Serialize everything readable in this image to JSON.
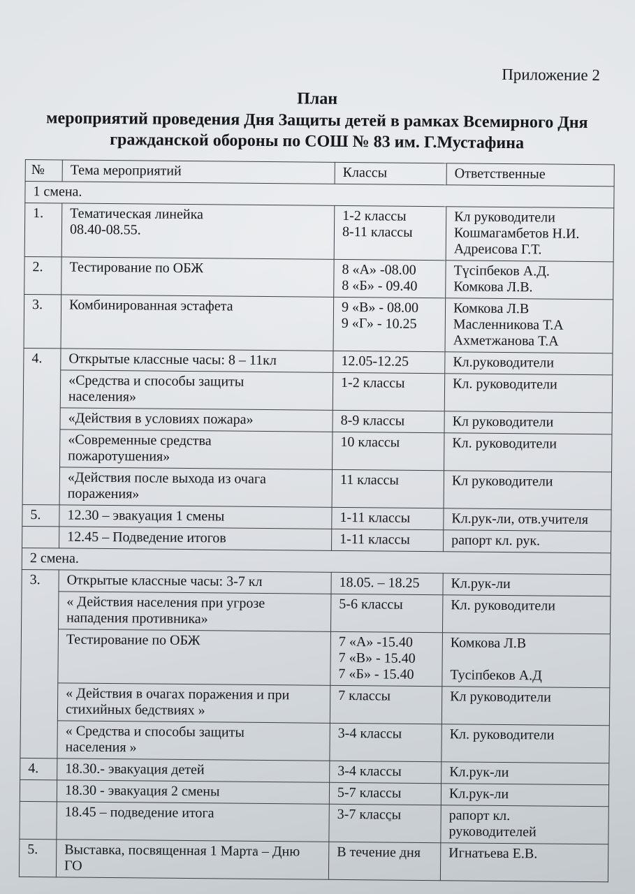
{
  "header": {
    "annex": "Приложение 2",
    "title_line1": "План",
    "title_line2": "мероприятий проведения Дня Защиты детей в рамках Всемирного Дня",
    "title_line3": "гражданской обороны по СОШ № 83 им. Г.Мустафина"
  },
  "table": {
    "columns": [
      "№",
      "Тема мероприятий",
      "Классы",
      "Ответственные"
    ],
    "rows": [
      {
        "section": "1 смена."
      },
      {
        "num": "1.",
        "topic": "Тематическая линейка\n08.40-08.55.",
        "classes": "1-2 классы\n8-11 классы",
        "resp": "Кл руководители\nКошмагамбетов Н.И.\nАдреисова Г.Т."
      },
      {
        "num": "2.",
        "topic": "Тестирование по ОБЖ",
        "classes": "8 «А» -08.00\n8 «Б» - 09.40",
        "resp": "Түсіпбеков А.Д.\nКомкова Л.В."
      },
      {
        "num": "3.",
        "topic": "Комбинированная эстафета",
        "classes": "9 «В» - 08.00\n9 «Г» - 10.25",
        "resp": "Комкова Л.В\nМасленникова Т.А\nАхметжанова Т.А"
      },
      {
        "num": "4.",
        "span": 5,
        "topic": "Открытые классные часы: 8 – 11кл",
        "classes": "12.05-12.25",
        "resp": "Кл.руководители"
      },
      {
        "topic": "«Средства и способы защиты\nнаселения»",
        "classes": "1-2 классы",
        "resp": "Кл. руководители"
      },
      {
        "topic": "«Действия в условиях пожара»",
        "classes": "8-9 классы",
        "resp": "Кл руководители"
      },
      {
        "topic": "«Современные средства\nпожаротушения»",
        "classes": "10 классы",
        "resp": "Кл. руководители"
      },
      {
        "topic": "«Действия после выхода  из очага\nпоражения»",
        "classes": "11 классы",
        "resp": "Кл руководители"
      },
      {
        "num": "5.",
        "topic": "12.30 – эвакуация 1 смены",
        "classes": "1-11 классы",
        "resp": "Кл.рук-ли, отв.учителя"
      },
      {
        "num": "",
        "topic": "12.45 –  Подведение итогов",
        "classes": "1-11 классы",
        "resp": "рапорт кл. рук."
      },
      {
        "section": "2 смена."
      },
      {
        "num": "3.",
        "span": 5,
        "topic": "Открытые классные часы: 3-7 кл",
        "classes": "18.05. – 18.25",
        "resp": "Кл.рук-ли"
      },
      {
        "topic": "« Действия населения при угрозе\nнападения противника»",
        "classes": "5-6 классы",
        "resp": "Кл. руководители"
      },
      {
        "topic": "Тестирование по ОБЖ",
        "classes": "7 «А» -15.40\n7 «В» - 15.40\n7 «Б» - 15.40",
        "resp": "Комкова Л.В\n\nТусіпбеков А.Д"
      },
      {
        "topic": "« Действия в очагах поражения и при\nстихийных бедствиях »",
        "classes": "7 классы",
        "resp": "Кл руководители"
      },
      {
        "topic": "« Средства и способы защиты\nнаселения  »",
        "classes": "3-4 классы",
        "resp": "Кл. руководители"
      },
      {
        "num": "4.",
        "topic": "18.30.- эвакуация детей",
        "classes": "3-4 классы",
        "resp": "Кл.рук-ли"
      },
      {
        "num": "",
        "topic": "18.30  - эвакуация 2 смены",
        "classes": "5-7 классы",
        "resp": "Кл.рук-ли"
      },
      {
        "num": "",
        "topic": "18.45 – подведение итога",
        "classes": "3-7 классы",
        "resp": "рапорт кл.\nруководителей"
      },
      {
        "num": "5.",
        "topic": "Выставка, посвященная 1 Марта – Дню\nГО",
        "classes": "В течение дня",
        "resp": "Игнатьева Е.В."
      }
    ]
  }
}
